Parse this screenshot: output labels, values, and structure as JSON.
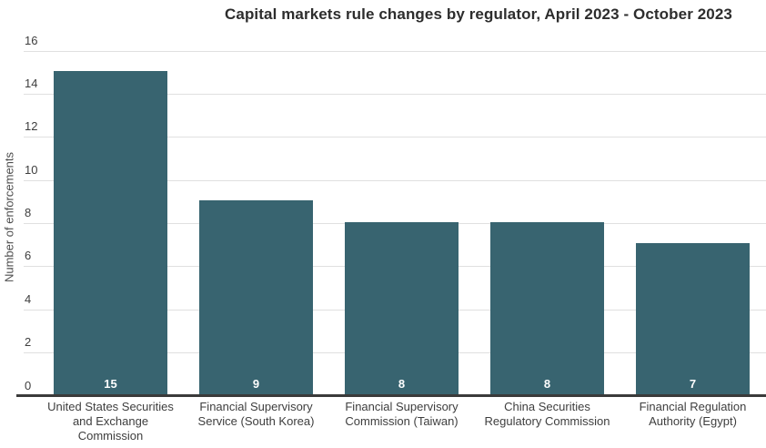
{
  "chart_data": {
    "type": "bar",
    "title": "Capital markets rule changes by regulator, April 2023 - October 2023",
    "xlabel": "",
    "ylabel": "Number of enforcements",
    "ylim": [
      0,
      16
    ],
    "y_ticks": [
      0,
      2,
      4,
      6,
      8,
      10,
      12,
      14,
      16
    ],
    "grid": "horizontal",
    "legend": "none",
    "bar_color": "#386470",
    "value_label_color": "#ffffff",
    "categories": [
      [
        "United States Securities",
        "and Exchange",
        "Commission"
      ],
      [
        "Financial Supervisory",
        "Service (South Korea)"
      ],
      [
        "Financial Supervisory",
        "Commission (Taiwan)"
      ],
      [
        "China Securities",
        "Regulatory Commission"
      ],
      [
        "Financial Regulation",
        "Authority (Egypt)"
      ]
    ],
    "values": [
      15,
      9,
      8,
      8,
      7
    ]
  }
}
